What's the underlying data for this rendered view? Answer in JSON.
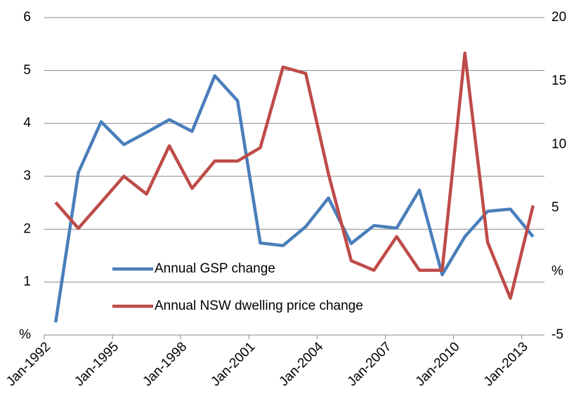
{
  "chart_data": {
    "type": "line",
    "x": [
      1992.5,
      1993.5,
      1994.5,
      1995.5,
      1996.5,
      1997.5,
      1998.5,
      1999.5,
      2000.5,
      2001.5,
      2002.5,
      2003.5,
      2004.5,
      2005.5,
      2006.5,
      2007.5,
      2008.5,
      2009.5,
      2010.5,
      2011.5,
      2012.5,
      2013.5
    ],
    "series": [
      {
        "name": "Annual GSP change",
        "color": "#4a7ebb",
        "values": [
          0.24,
          3.07,
          4.03,
          3.6,
          3.83,
          4.07,
          3.85,
          4.9,
          4.43,
          1.74,
          1.69,
          2.05,
          2.59,
          1.73,
          2.07,
          2.02,
          2.74,
          1.14,
          1.86,
          2.34,
          2.38,
          1.86
        ]
      },
      {
        "name": "Annual NSW dwelling price change",
        "color": "#be4b48",
        "axis": "y2",
        "values": [
          5.45,
          3.4,
          5.45,
          7.5,
          6.1,
          9.9,
          6.55,
          8.7,
          8.7,
          9.75,
          16.1,
          15.6,
          7.7,
          0.85,
          0.1,
          2.75,
          0.1,
          0.1,
          17.2,
          2.3,
          -2.1,
          5.2
        ]
      }
    ],
    "xlim": [
      1992,
      2014
    ],
    "xticks": [
      {
        "value": 1992,
        "label": "Jan-1992"
      },
      {
        "value": 1995,
        "label": "Jan-1995"
      },
      {
        "value": 1998,
        "label": "Jan-1998"
      },
      {
        "value": 2001,
        "label": "Jan-2001"
      },
      {
        "value": 2004,
        "label": "Jan-2004"
      },
      {
        "value": 2007,
        "label": "Jan-2007"
      },
      {
        "value": 2010,
        "label": "Jan-2010"
      },
      {
        "value": 2013,
        "label": "Jan-2013"
      }
    ],
    "ylim": [
      0,
      6
    ],
    "yticks": [
      {
        "value": 0,
        "label": "%"
      },
      1,
      2,
      3,
      4,
      5,
      6
    ],
    "y2lim": [
      -5,
      20
    ],
    "y2ticks": [
      -5,
      {
        "value": 0,
        "label": "%"
      },
      5,
      10,
      15,
      20
    ],
    "grid": true
  }
}
